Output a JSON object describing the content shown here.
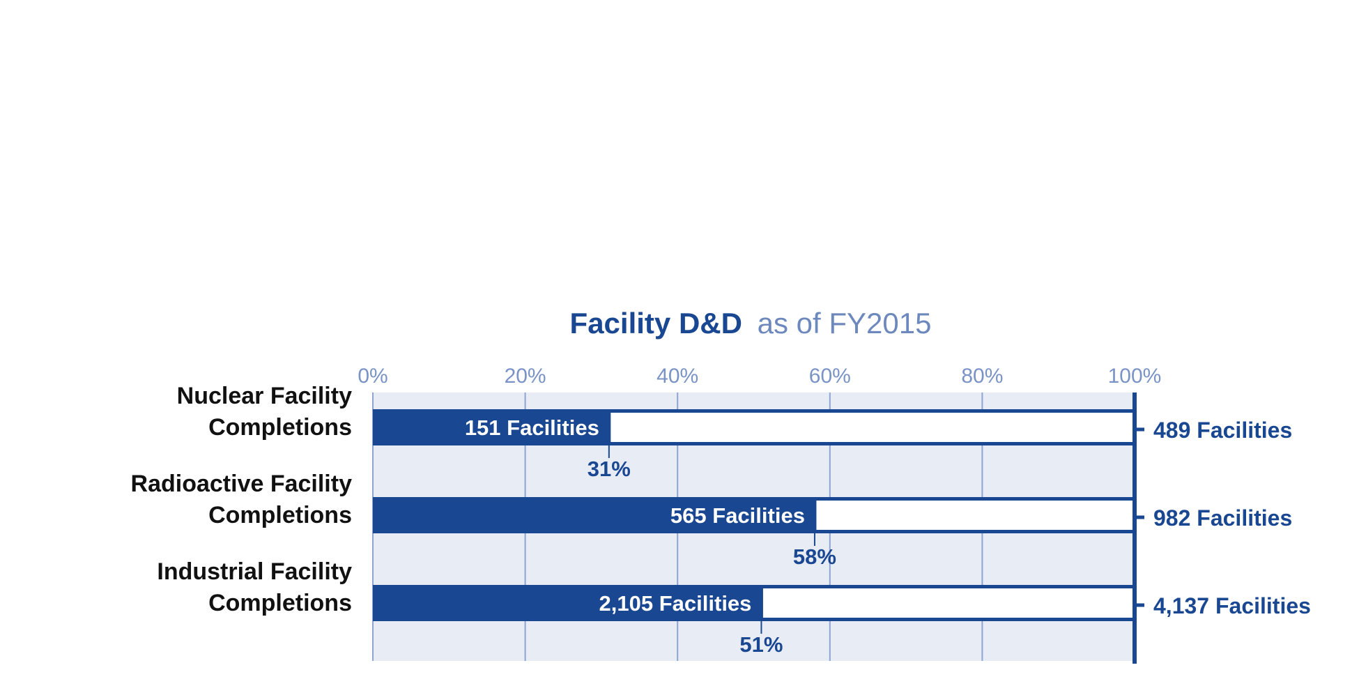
{
  "chart_data": {
    "type": "bar",
    "title_bold": "Facility D&D",
    "title_rest": "as of FY2015",
    "x_ticks": [
      "0%",
      "20%",
      "40%",
      "60%",
      "80%",
      "100%"
    ],
    "xlim": [
      0,
      100
    ],
    "categories": [
      [
        "Nuclear Facility",
        "Completions"
      ],
      [
        "Radioactive Facility",
        "Completions"
      ],
      [
        "Industrial Facility",
        "Completions"
      ]
    ],
    "series": [
      {
        "completed_percent": [
          31,
          58,
          51
        ],
        "completed_labels": [
          "151 Facilities",
          "565 Facilities",
          "2,105 Facilities"
        ],
        "percent_labels": [
          "31%",
          "58%",
          "51%"
        ],
        "total_labels": [
          "489 Facilities",
          "982 Facilities",
          "4,137 Facilities"
        ]
      }
    ],
    "grid": true,
    "colors": {
      "bar_fill": "#1a4791",
      "remaining_fill": "#ffffff",
      "background_band": "#e8ecf4",
      "gridline": "#8ea4d2",
      "title_bold": "#1a4791",
      "title_light": "#6d88bd",
      "tick_text": "#7a93c6"
    }
  }
}
